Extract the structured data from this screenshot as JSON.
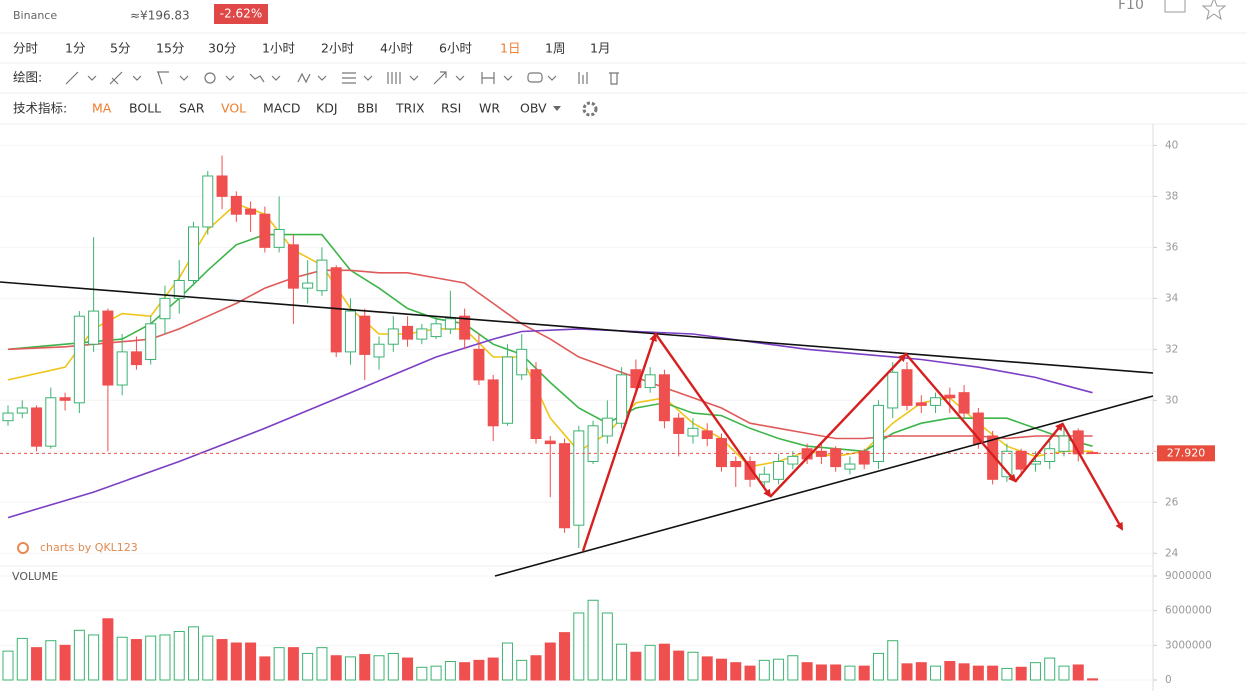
{
  "header": {
    "exchange": "Binance",
    "cny_price": "≈¥196.83",
    "change": "-2.62%",
    "f10": "F10"
  },
  "toolbar": {
    "periods": [
      {
        "label": "分时"
      },
      {
        "label": "1分"
      },
      {
        "label": "5分"
      },
      {
        "label": "15分"
      },
      {
        "label": "30分"
      },
      {
        "label": "1小时"
      },
      {
        "label": "2小时"
      },
      {
        "label": "4小时"
      },
      {
        "label": "6小时"
      },
      {
        "label": "1日",
        "active": true
      },
      {
        "label": "1周"
      },
      {
        "label": "1月"
      }
    ],
    "draw_label": "绘图:",
    "indicator_label": "技术指标:",
    "indicators": [
      {
        "label": "MA",
        "active": true
      },
      {
        "label": "BOLL"
      },
      {
        "label": "SAR"
      },
      {
        "label": "VOL",
        "active": true
      },
      {
        "label": "MACD"
      },
      {
        "label": "KDJ"
      },
      {
        "label": "BBI"
      },
      {
        "label": "TRIX"
      },
      {
        "label": "RSI"
      },
      {
        "label": "WR"
      },
      {
        "label": "OBV"
      }
    ],
    "active_color": "#f07d2e"
  },
  "chart_data": [
    {
      "type": "candlestick",
      "watermark": "charts by QKL123",
      "up_color": "#3cb371",
      "down_color": "#ef4f4f",
      "open": [
        29.2,
        29.5,
        29.7,
        28.2,
        30.1,
        29.9,
        32.2,
        33.5,
        30.6,
        31.9,
        31.6,
        33.2,
        34.0,
        34.7,
        36.8,
        38.8,
        38.0,
        37.5,
        37.3,
        36.0,
        36.1,
        34.4,
        34.3,
        35.2,
        31.9,
        33.3,
        31.7,
        32.2,
        32.9,
        32.4,
        32.5,
        32.8,
        33.3,
        32.0,
        30.8,
        29.1,
        31.0,
        31.2,
        28.4,
        28.3,
        25.1,
        27.6,
        28.6,
        29.1,
        31.2,
        30.5,
        31.0,
        29.3,
        28.6,
        28.8,
        28.5,
        27.6,
        27.6,
        26.8,
        26.9,
        27.5,
        28.1,
        28.0,
        28.1,
        27.3,
        28.0,
        27.6,
        29.7,
        31.2,
        29.9,
        29.8,
        30.2,
        30.3,
        29.5,
        28.6,
        27.0,
        28.0,
        27.5,
        27.6,
        28.0,
        28.8,
        27.95
      ],
      "high": [
        29.8,
        30.0,
        29.8,
        30.5,
        30.3,
        33.5,
        36.4,
        33.6,
        32.6,
        32.5,
        33.3,
        34.5,
        35.5,
        37.0,
        39.0,
        39.6,
        38.2,
        37.8,
        37.6,
        38.0,
        36.5,
        35.5,
        36.0,
        35.3,
        34.0,
        33.6,
        32.5,
        33.3,
        33.3,
        33.0,
        33.3,
        34.3,
        33.6,
        32.6,
        31.0,
        32.2,
        32.6,
        31.5,
        28.6,
        28.5,
        29.0,
        29.2,
        30.0,
        31.3,
        31.6,
        31.3,
        31.2,
        29.5,
        29.3,
        29.1,
        28.7,
        27.8,
        27.8,
        27.4,
        27.9,
        28.0,
        28.3,
        28.3,
        28.2,
        27.8,
        28.1,
        30.0,
        31.5,
        31.5,
        30.2,
        30.3,
        30.5,
        30.6,
        29.7,
        28.8,
        28.3,
        28.1,
        28.0,
        28.4,
        28.9,
        28.9,
        28.0
      ],
      "low": [
        29.0,
        29.3,
        28.0,
        28.1,
        29.6,
        29.5,
        31.9,
        28.0,
        30.2,
        31.2,
        31.4,
        32.6,
        33.4,
        34.5,
        36.5,
        37.5,
        37.0,
        36.6,
        35.8,
        35.8,
        33.0,
        33.8,
        34.1,
        31.7,
        31.4,
        30.8,
        31.2,
        31.9,
        32.1,
        32.2,
        32.4,
        32.6,
        32.0,
        30.6,
        28.4,
        29.0,
        30.8,
        28.3,
        26.2,
        24.8,
        24.2,
        27.5,
        28.3,
        28.9,
        30.2,
        30.3,
        28.9,
        27.8,
        28.3,
        28.2,
        27.2,
        26.6,
        26.6,
        26.5,
        26.7,
        27.3,
        27.5,
        27.5,
        27.2,
        27.1,
        27.3,
        27.3,
        29.3,
        29.6,
        29.5,
        29.5,
        29.5,
        29.3,
        28.1,
        26.7,
        26.8,
        27.0,
        27.2,
        27.3,
        27.8,
        27.6,
        27.9
      ],
      "close": [
        29.5,
        29.7,
        28.2,
        30.1,
        30.0,
        33.3,
        33.5,
        30.6,
        31.9,
        31.4,
        33.0,
        34.0,
        34.7,
        36.8,
        38.8,
        38.0,
        37.3,
        37.3,
        36.0,
        36.7,
        34.4,
        34.6,
        35.5,
        31.9,
        33.5,
        31.8,
        32.2,
        32.8,
        32.4,
        32.8,
        33.0,
        33.2,
        32.4,
        30.8,
        29.0,
        31.7,
        32.0,
        28.5,
        28.3,
        25.0,
        28.8,
        29.0,
        29.3,
        31.0,
        30.5,
        31.0,
        29.2,
        28.7,
        28.9,
        28.5,
        27.4,
        27.4,
        26.9,
        27.1,
        27.6,
        27.8,
        27.7,
        27.8,
        27.4,
        27.5,
        27.5,
        29.8,
        31.1,
        29.8,
        29.8,
        30.1,
        30.1,
        29.5,
        28.3,
        26.9,
        28.0,
        27.3,
        27.6,
        28.1,
        28.6,
        27.9,
        27.92
      ],
      "series": [
        {
          "color": "#f0c419",
          "x": [
            0,
            4,
            6,
            8,
            10,
            12,
            14,
            16,
            18,
            20,
            22,
            24,
            26,
            28,
            30,
            32,
            34,
            36,
            38,
            40,
            42,
            44,
            46,
            48,
            50,
            52,
            54,
            56,
            58,
            60,
            62,
            64,
            66,
            68,
            70,
            72,
            74,
            76
          ],
          "values": [
            30.8,
            31.3,
            32.8,
            33.4,
            33.3,
            34.8,
            36.7,
            37.7,
            37.3,
            35.9,
            35.3,
            33.6,
            32.6,
            32.6,
            32.8,
            32.8,
            31.7,
            31.7,
            29.3,
            28.0,
            28.7,
            29.9,
            30.1,
            29.1,
            28.5,
            27.4,
            27.6,
            28.0,
            27.8,
            28.0,
            29.1,
            29.9,
            30.1,
            29.1,
            28.2,
            27.8,
            28.0,
            28.0
          ]
        },
        {
          "color": "#3db54a",
          "x": [
            0,
            4,
            8,
            10,
            12,
            14,
            16,
            18,
            20,
            22,
            24,
            26,
            28,
            30,
            32,
            34,
            36,
            38,
            40,
            42,
            44,
            46,
            48,
            50,
            52,
            54,
            56,
            58,
            60,
            62,
            64,
            66,
            68,
            70,
            72,
            74,
            76
          ],
          "values": [
            32.0,
            32.2,
            32.4,
            33.0,
            34.0,
            35.1,
            36.1,
            36.5,
            36.5,
            36.5,
            35.1,
            34.4,
            33.6,
            33.2,
            33.0,
            32.2,
            31.8,
            30.7,
            29.7,
            29.1,
            29.7,
            29.9,
            29.5,
            29.4,
            28.9,
            28.5,
            28.2,
            28.1,
            28.0,
            28.7,
            29.1,
            29.3,
            29.3,
            29.3,
            28.9,
            28.5,
            28.2
          ]
        },
        {
          "color": "#e05a5a",
          "x": [
            0,
            4,
            8,
            10,
            12,
            14,
            16,
            18,
            20,
            22,
            24,
            26,
            28,
            30,
            32,
            34,
            36,
            38,
            40,
            42,
            44,
            46,
            48,
            50,
            52,
            54,
            56,
            58,
            60,
            62,
            64,
            66,
            68,
            70,
            72,
            74,
            76
          ],
          "values": [
            32.0,
            32.1,
            32.3,
            32.4,
            32.8,
            33.3,
            33.8,
            34.4,
            34.8,
            35.1,
            35.1,
            35.0,
            35.0,
            34.8,
            34.6,
            33.8,
            33.0,
            32.4,
            31.7,
            31.3,
            30.9,
            30.5,
            30.1,
            29.7,
            29.1,
            28.9,
            28.7,
            28.5,
            28.5,
            28.6,
            28.6,
            28.6,
            28.6,
            28.5,
            28.6,
            28.6,
            28.6
          ]
        },
        {
          "color": "#7b3fc4",
          "x": [
            0,
            6,
            12,
            18,
            24,
            30,
            34,
            36,
            40,
            44,
            48,
            52,
            56,
            60,
            64,
            68,
            72,
            76
          ],
          "values": [
            25.4,
            26.4,
            27.6,
            28.9,
            30.3,
            31.7,
            32.4,
            32.7,
            32.8,
            32.7,
            32.6,
            32.3,
            32.0,
            31.8,
            31.6,
            31.3,
            30.9,
            30.3
          ]
        }
      ],
      "last_price": {
        "value": 27.92,
        "label": "27.920"
      },
      "ylim": [
        23.5,
        40.8
      ],
      "yticks": [
        24,
        26,
        28,
        30,
        32,
        34,
        36,
        38,
        40
      ],
      "grid": true
    },
    {
      "type": "bar",
      "title": "VOLUME",
      "values": [
        2500000,
        3600000,
        2800000,
        3400000,
        3000000,
        4300000,
        3900000,
        5300000,
        3700000,
        3500000,
        3800000,
        3900000,
        4200000,
        4600000,
        3800000,
        3500000,
        3200000,
        3200000,
        2000000,
        2800000,
        2800000,
        2300000,
        2800000,
        2100000,
        2000000,
        2200000,
        2100000,
        2300000,
        1900000,
        1100000,
        1200000,
        1600000,
        1500000,
        1700000,
        1900000,
        3200000,
        1700000,
        2100000,
        3200000,
        4100000,
        5800000,
        6900000,
        5800000,
        3100000,
        2400000,
        3000000,
        3100000,
        2500000,
        2400000,
        2000000,
        1800000,
        1500000,
        1200000,
        1700000,
        1800000,
        2100000,
        1500000,
        1300000,
        1300000,
        1200000,
        1200000,
        2300000,
        3400000,
        1400000,
        1500000,
        1200000,
        1600000,
        1400000,
        1200000,
        1200000,
        1000000,
        1100000,
        1500000,
        1900000,
        1200000,
        1300000,
        100000
      ],
      "ylim": [
        0,
        9000000
      ],
      "yticks": [
        0,
        3000000,
        6000000,
        9000000
      ],
      "grid": true
    }
  ]
}
